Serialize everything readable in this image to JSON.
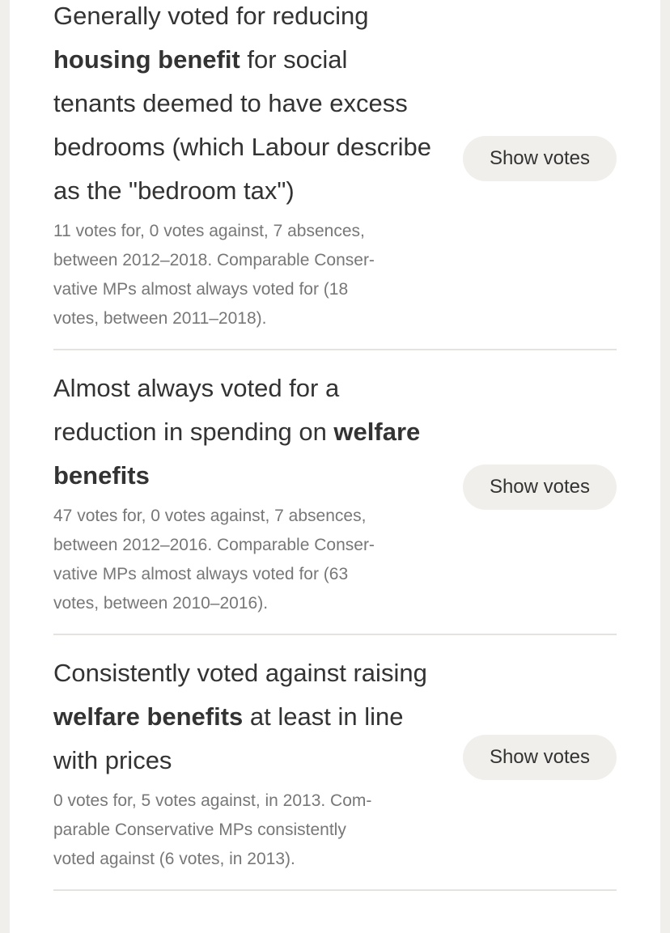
{
  "items": [
    {
      "statement": [
        {
          "text": "Generally voted for reducing ",
          "bold": false
        },
        {
          "text": "housing benefit",
          "bold": true
        },
        {
          "text": " for social tenants deemed to have excess bedrooms (which Labour describe as the \"bedroom tax\")",
          "bold": false
        }
      ],
      "detail_lines": [
        "11 votes for, 0 votes against, 7 absences,",
        "between 2012–2018. Comparable Conser-",
        "vative MPs almost always voted for (18",
        "votes, between 2011–2018)."
      ],
      "button": "Show votes"
    },
    {
      "statement": [
        {
          "text": "Almost always voted for a reduction in spending on ",
          "bold": false
        },
        {
          "text": "welfare benefits",
          "bold": true
        }
      ],
      "detail_lines": [
        "47 votes for, 0 votes against, 7 absences,",
        "between 2012–2016. Comparable Conser-",
        "vative MPs almost always voted for (63",
        "votes, between 2010–2016)."
      ],
      "button": "Show votes"
    },
    {
      "statement": [
        {
          "text": "Consistently voted against raising ",
          "bold": false
        },
        {
          "text": "welfare benefits",
          "bold": true
        },
        {
          "text": " at least in line with prices",
          "bold": false
        }
      ],
      "detail_lines": [
        "0 votes for, 5 votes against, in 2013. Com-",
        "parable Conservative MPs consistently",
        "voted against (6 votes, in 2013)."
      ],
      "button": "Show votes"
    }
  ]
}
